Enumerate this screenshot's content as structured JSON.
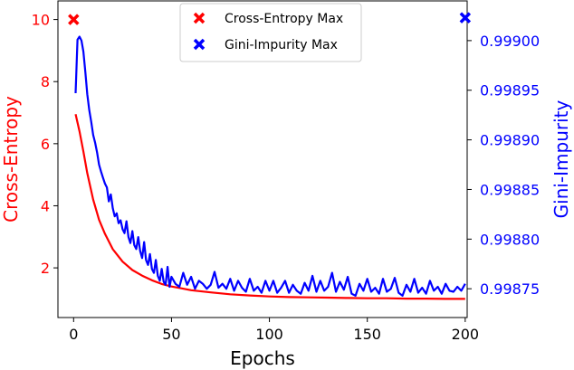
{
  "chart_data": {
    "type": "line",
    "x_axis": {
      "label": "Epochs",
      "range": [
        -8,
        201
      ],
      "ticks": [
        0,
        50,
        100,
        150,
        200
      ],
      "tick_labels": [
        "0",
        "50",
        "100",
        "150",
        "200"
      ]
    },
    "y_left": {
      "label": "Cross-Entropy",
      "color": "#ff0000",
      "range": [
        0.4,
        10.6
      ],
      "ticks": [
        2,
        4,
        6,
        8,
        10
      ],
      "tick_labels": [
        "2",
        "4",
        "6",
        "8",
        "10"
      ]
    },
    "y_right": {
      "label": "Gini-Impurity",
      "color": "#0000ff",
      "range": [
        0.998721,
        0.99904
      ],
      "ticks": [
        0.99875,
        0.9988,
        0.99885,
        0.9989,
        0.99895,
        0.999
      ],
      "tick_labels": [
        "0.99875",
        "0.99880",
        "0.99885",
        "0.99890",
        "0.99895",
        "0.99900"
      ]
    },
    "series": [
      {
        "name": "Cross-Entropy",
        "axis": "left",
        "color": "#ff0000",
        "x": [
          1,
          3,
          5,
          7,
          10,
          13,
          16,
          20,
          25,
          30,
          35,
          40,
          45,
          50,
          55,
          60,
          70,
          80,
          90,
          100,
          110,
          120,
          130,
          140,
          150,
          160,
          170,
          180,
          190,
          200
        ],
        "y": [
          6.95,
          6.4,
          5.75,
          5.05,
          4.2,
          3.55,
          3.1,
          2.6,
          2.2,
          1.93,
          1.75,
          1.6,
          1.48,
          1.4,
          1.34,
          1.28,
          1.21,
          1.15,
          1.11,
          1.08,
          1.06,
          1.05,
          1.04,
          1.03,
          1.02,
          1.02,
          1.01,
          1.01,
          1.0,
          1.0
        ]
      },
      {
        "name": "Gini-Impurity",
        "axis": "right",
        "color": "#0000ff",
        "x": [
          1,
          2,
          3,
          4,
          5,
          6,
          7,
          8,
          9,
          10,
          11,
          12,
          13,
          14,
          15,
          16,
          17,
          18,
          19,
          20,
          21,
          22,
          23,
          24,
          25,
          26,
          27,
          28,
          29,
          30,
          31,
          32,
          33,
          34,
          35,
          36,
          37,
          38,
          39,
          40,
          41,
          42,
          43,
          44,
          45,
          46,
          47,
          48,
          49,
          50,
          52,
          54,
          56,
          58,
          60,
          62,
          64,
          66,
          68,
          70,
          72,
          74,
          76,
          78,
          80,
          82,
          84,
          86,
          88,
          90,
          92,
          94,
          96,
          98,
          100,
          102,
          104,
          106,
          108,
          110,
          112,
          114,
          116,
          118,
          120,
          122,
          124,
          126,
          128,
          130,
          132,
          134,
          136,
          138,
          140,
          142,
          144,
          146,
          148,
          150,
          152,
          154,
          156,
          158,
          160,
          162,
          164,
          166,
          168,
          170,
          172,
          174,
          176,
          178,
          180,
          182,
          184,
          186,
          188,
          190,
          192,
          194,
          196,
          198,
          200
        ],
        "y": [
          0.998947,
          0.999001,
          0.999004,
          0.999,
          0.998989,
          0.998968,
          0.998946,
          0.99893,
          0.998918,
          0.998905,
          0.998897,
          0.998887,
          0.998875,
          0.998868,
          0.998862,
          0.998856,
          0.998852,
          0.998838,
          0.998845,
          0.998831,
          0.998823,
          0.998826,
          0.998816,
          0.998819,
          0.99881,
          0.998806,
          0.998818,
          0.998802,
          0.998796,
          0.998808,
          0.998794,
          0.99879,
          0.998802,
          0.998788,
          0.998781,
          0.998797,
          0.998779,
          0.998774,
          0.998785,
          0.99877,
          0.998766,
          0.998779,
          0.998763,
          0.998758,
          0.99877,
          0.998757,
          0.998754,
          0.998772,
          0.998752,
          0.998762,
          0.998755,
          0.998752,
          0.998766,
          0.998754,
          0.998762,
          0.99875,
          0.998758,
          0.998755,
          0.99875,
          0.998754,
          0.998767,
          0.998751,
          0.998755,
          0.99875,
          0.99876,
          0.998748,
          0.998758,
          0.998751,
          0.998747,
          0.99876,
          0.998748,
          0.998752,
          0.998746,
          0.998758,
          0.998748,
          0.998758,
          0.998746,
          0.998751,
          0.998758,
          0.998746,
          0.998754,
          0.998748,
          0.998745,
          0.998756,
          0.998748,
          0.998763,
          0.998747,
          0.998758,
          0.998748,
          0.998752,
          0.998766,
          0.998747,
          0.998757,
          0.998749,
          0.998762,
          0.998745,
          0.998743,
          0.998755,
          0.998748,
          0.99876,
          0.998747,
          0.998751,
          0.998745,
          0.99876,
          0.998747,
          0.99875,
          0.998761,
          0.998746,
          0.998743,
          0.998754,
          0.998747,
          0.99876,
          0.998746,
          0.998751,
          0.998745,
          0.998758,
          0.998748,
          0.998752,
          0.998745,
          0.998755,
          0.998748,
          0.998747,
          0.998752,
          0.998748,
          0.998755
        ]
      }
    ],
    "markers": [
      {
        "name": "Cross-Entropy Max",
        "axis": "left",
        "x": 0,
        "y": 10,
        "color": "#ff0000",
        "symbol": "x"
      },
      {
        "name": "Gini-Impurity Max",
        "axis": "right",
        "x": 200,
        "y": 0.999023,
        "color": "#0000ff",
        "symbol": "x"
      }
    ],
    "legend": {
      "position": "top-center",
      "entries": [
        {
          "label": "Cross-Entropy Max",
          "color": "#ff0000",
          "symbol": "x"
        },
        {
          "label": "Gini-Impurity Max",
          "color": "#0000ff",
          "symbol": "x"
        }
      ]
    }
  }
}
